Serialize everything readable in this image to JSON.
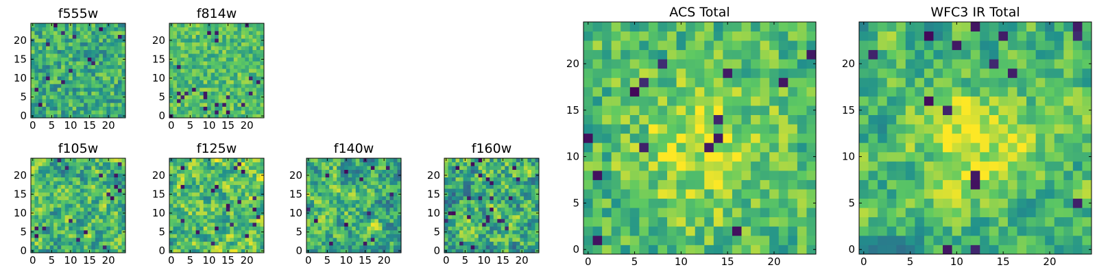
{
  "chart_data": [
    {
      "type": "heatmap",
      "title": "f555w",
      "xticks": [
        "0",
        "5",
        "10",
        "15",
        "20"
      ],
      "yticks": [
        "0",
        "5",
        "10",
        "15",
        "20"
      ],
      "xlim": [
        0,
        24
      ],
      "ylim": [
        0,
        24
      ],
      "grid_size": 25,
      "colormap": "viridis",
      "seed": 11,
      "mean": 0.62,
      "spread": 0.22,
      "smooth": 0
    },
    {
      "type": "heatmap",
      "title": "f814w",
      "xticks": [
        "0",
        "5",
        "10",
        "15",
        "20"
      ],
      "yticks": [
        "0",
        "5",
        "10",
        "15",
        "20"
      ],
      "xlim": [
        0,
        24
      ],
      "ylim": [
        0,
        24
      ],
      "grid_size": 25,
      "colormap": "viridis",
      "seed": 23,
      "mean": 0.7,
      "spread": 0.18,
      "smooth": 0
    },
    {
      "type": "heatmap",
      "title": "f105w",
      "xticks": [
        "0",
        "5",
        "10",
        "15",
        "20"
      ],
      "yticks": [
        "0",
        "5",
        "10",
        "15",
        "20"
      ],
      "xlim": [
        0,
        24
      ],
      "ylim": [
        0,
        24
      ],
      "grid_size": 25,
      "colormap": "viridis",
      "seed": 37,
      "mean": 0.66,
      "spread": 0.28,
      "smooth": 1
    },
    {
      "type": "heatmap",
      "title": "f125w",
      "xticks": [
        "0",
        "5",
        "10",
        "15",
        "20"
      ],
      "yticks": [
        "0",
        "5",
        "10",
        "15",
        "20"
      ],
      "xlim": [
        0,
        24
      ],
      "ylim": [
        0,
        24
      ],
      "grid_size": 25,
      "colormap": "viridis",
      "seed": 41,
      "mean": 0.7,
      "spread": 0.28,
      "smooth": 1
    },
    {
      "type": "heatmap",
      "title": "f140w",
      "xticks": [
        "0",
        "5",
        "10",
        "15",
        "20"
      ],
      "yticks": [
        "0",
        "5",
        "10",
        "15",
        "20"
      ],
      "xlim": [
        0,
        24
      ],
      "ylim": [
        0,
        24
      ],
      "grid_size": 25,
      "colormap": "viridis",
      "seed": 53,
      "mean": 0.64,
      "spread": 0.28,
      "smooth": 1
    },
    {
      "type": "heatmap",
      "title": "f160w",
      "xticks": [
        "0",
        "5",
        "10",
        "15",
        "20"
      ],
      "yticks": [
        "0",
        "5",
        "10",
        "15",
        "20"
      ],
      "xlim": [
        0,
        24
      ],
      "ylim": [
        0,
        24
      ],
      "grid_size": 25,
      "colormap": "viridis",
      "seed": 67,
      "mean": 0.64,
      "spread": 0.3,
      "smooth": 1
    },
    {
      "type": "heatmap",
      "title": "ACS Total",
      "xticks": [
        "0",
        "5",
        "10",
        "15",
        "20"
      ],
      "yticks": [
        "0",
        "5",
        "10",
        "15",
        "20"
      ],
      "xlim": [
        0,
        24
      ],
      "ylim": [
        0,
        24
      ],
      "grid_size": 25,
      "colormap": "viridis",
      "seed": 79,
      "mean": 0.68,
      "spread": 0.2,
      "smooth": 0,
      "blob": {
        "cx": 12,
        "cy": 11,
        "r": 5,
        "amp": 0.22
      }
    },
    {
      "type": "heatmap",
      "title": "WFC3 IR Total",
      "xticks": [
        "0",
        "5",
        "10",
        "15",
        "20"
      ],
      "yticks": [
        "0",
        "5",
        "10",
        "15",
        "20"
      ],
      "xlim": [
        0,
        24
      ],
      "ylim": [
        0,
        24
      ],
      "grid_size": 25,
      "colormap": "viridis",
      "seed": 97,
      "mean": 0.66,
      "spread": 0.22,
      "smooth": 1,
      "blob": {
        "cx": 12,
        "cy": 12,
        "r": 4,
        "amp": 0.28
      }
    }
  ],
  "colormap_stops": [
    "#440154",
    "#3b528b",
    "#21918c",
    "#5ec962",
    "#fde725"
  ]
}
